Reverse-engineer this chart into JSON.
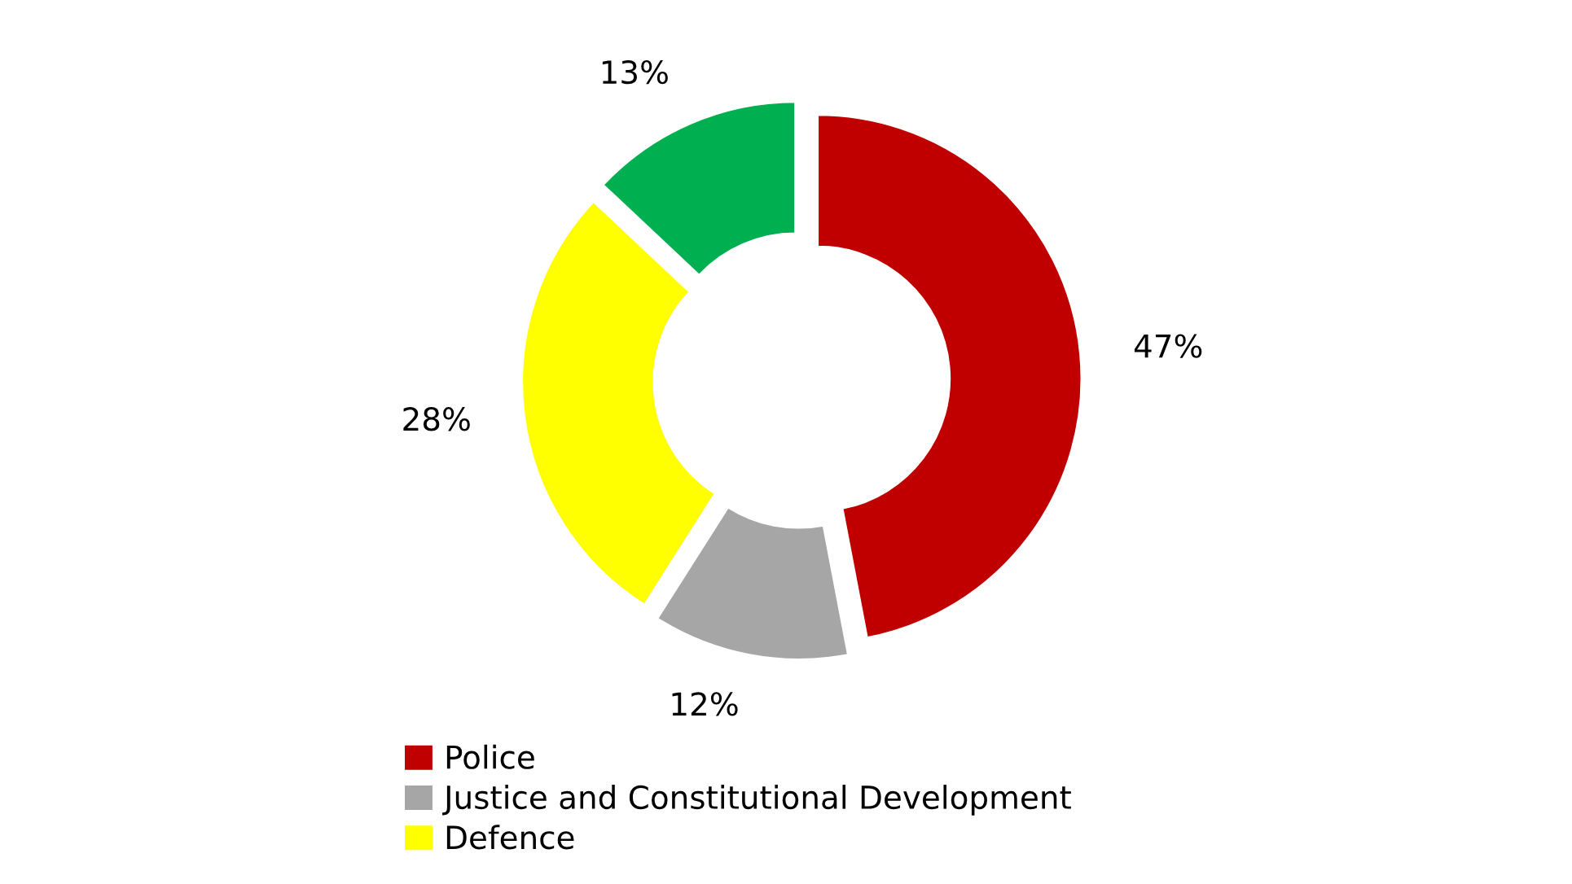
{
  "chart_data": {
    "type": "donut",
    "categories": [
      "Police",
      "Justice and Constitutional Development",
      "Defence",
      null
    ],
    "values": [
      47,
      12,
      28,
      13
    ],
    "value_labels": [
      "47%",
      "12%",
      "28%",
      "13%"
    ],
    "colors": [
      "#c00000",
      "#a6a6a6",
      "#ffff00",
      "#00b050"
    ],
    "legend": "bottom"
  }
}
